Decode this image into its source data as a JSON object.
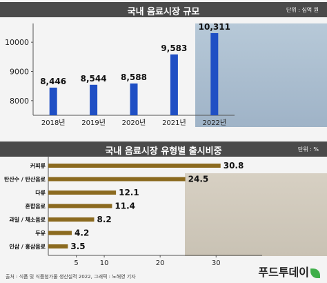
{
  "chart_data": [
    {
      "type": "bar",
      "title": "국내 음료시장 규모",
      "unit": "단위 : 십억 원",
      "categories": [
        "2018년",
        "2019년",
        "2020년",
        "2021년",
        "2022년"
      ],
      "values": [
        8446,
        8544,
        8588,
        9583,
        10311
      ],
      "value_labels": [
        "8,446",
        "8,544",
        "8,588",
        "9,583",
        "10,311"
      ],
      "yticks": [
        "8000",
        "9000",
        "10000"
      ],
      "ylim": [
        7500,
        10500
      ],
      "bar_color": "#1f4fc4"
    },
    {
      "type": "bar",
      "orientation": "horizontal",
      "title": "국내 음료시장 유형별 출시비중",
      "unit": "단위 : %",
      "categories": [
        "커피류",
        "탄산수 / 탄산음료",
        "다류",
        "혼합음료",
        "과일 / 채소음료",
        "두유",
        "인삼 / 홍삼음료"
      ],
      "values": [
        30.8,
        24.5,
        12.1,
        11.4,
        8.2,
        4.2,
        3.5
      ],
      "value_labels": [
        "30.8",
        "24.5",
        "12.1",
        "11.4",
        "8.2",
        "4.2",
        "3.5"
      ],
      "xticks": [
        "5",
        "10",
        "20",
        "30"
      ],
      "bar_color": "#8b6a1f"
    }
  ],
  "footer": {
    "source": "출처 : 식품 및 식품첨가물 생산실적 2022, 그래픽 : 노해영 기자",
    "logo": "푸드투데이"
  }
}
